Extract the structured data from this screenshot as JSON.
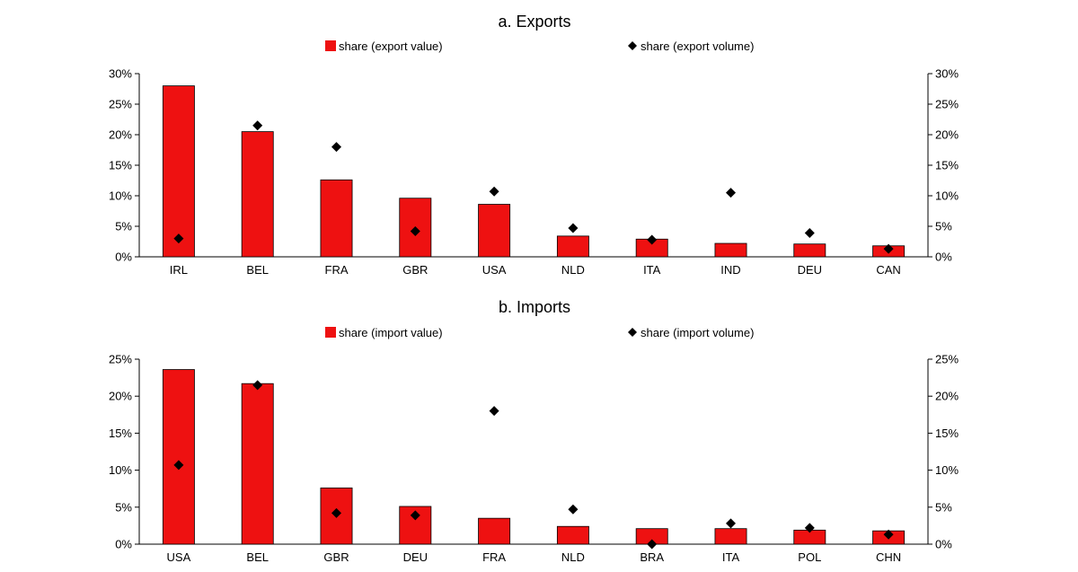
{
  "chart_data": [
    {
      "type": "bar",
      "title": "a. Exports",
      "categories": [
        "IRL",
        "BEL",
        "FRA",
        "GBR",
        "USA",
        "NLD",
        "ITA",
        "IND",
        "DEU",
        "CAN"
      ],
      "series": [
        {
          "name": "share (export value)",
          "mark": "bar",
          "color": "#ee1111",
          "values": [
            28.0,
            20.5,
            12.6,
            9.6,
            8.6,
            3.4,
            2.9,
            2.2,
            2.1,
            1.8
          ]
        },
        {
          "name": "share (export volume)",
          "mark": "diamond",
          "color": "#000000",
          "values": [
            3.0,
            21.5,
            18.0,
            4.2,
            10.7,
            4.7,
            2.8,
            10.5,
            3.9,
            1.3
          ]
        }
      ],
      "ylim": [
        0,
        30
      ],
      "yticks": [
        "0%",
        "5%",
        "10%",
        "15%",
        "20%",
        "25%",
        "30%"
      ],
      "ytick_values": [
        0,
        5,
        10,
        15,
        20,
        25,
        30
      ],
      "secondary_axis": true,
      "legend": "top"
    },
    {
      "type": "bar",
      "title": "b. Imports",
      "categories": [
        "USA",
        "BEL",
        "GBR",
        "DEU",
        "FRA",
        "NLD",
        "BRA",
        "ITA",
        "POL",
        "CHN"
      ],
      "series": [
        {
          "name": "share (import value)",
          "mark": "bar",
          "color": "#ee1111",
          "values": [
            23.6,
            21.7,
            7.6,
            5.1,
            3.5,
            2.4,
            2.1,
            2.1,
            1.9,
            1.8
          ]
        },
        {
          "name": "share (import volume)",
          "mark": "diamond",
          "color": "#000000",
          "values": [
            10.7,
            21.5,
            4.2,
            3.9,
            18.0,
            4.7,
            0.0,
            2.8,
            2.2,
            1.3
          ]
        }
      ],
      "ylim": [
        0,
        25
      ],
      "yticks": [
        "0%",
        "5%",
        "10%",
        "15%",
        "20%",
        "25%"
      ],
      "ytick_values": [
        0,
        5,
        10,
        15,
        20,
        25
      ],
      "secondary_axis": true,
      "legend": "top"
    }
  ]
}
